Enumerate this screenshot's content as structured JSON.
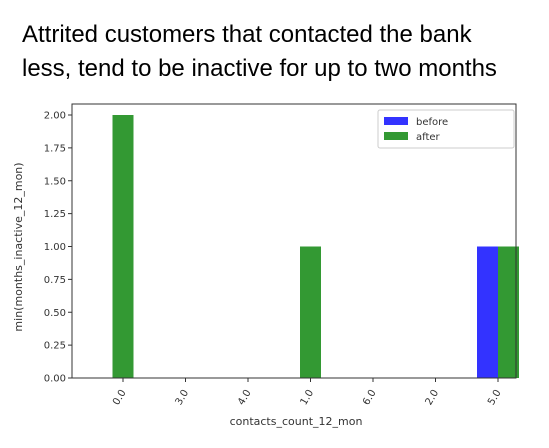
{
  "slide": {
    "title_line1": "Attrited customers that contacted the bank",
    "title_line2": "less, tend to be inactive for up to two months"
  },
  "chart_data": {
    "type": "bar",
    "xlabel": "contacts_count_12_mon",
    "ylabel": "min(months_inactive_12_mon)",
    "categories": [
      "0.0",
      "3.0",
      "4.0",
      "1.0",
      "6.0",
      "2.0",
      "5.0"
    ],
    "series": [
      {
        "name": "before",
        "color": "#3333ff",
        "values": [
          null,
          null,
          null,
          null,
          null,
          null,
          1.0
        ]
      },
      {
        "name": "after",
        "color": "#339933",
        "values": [
          2.0,
          null,
          null,
          1.0,
          null,
          null,
          1.0
        ]
      }
    ],
    "yticks": [
      "0.00",
      "0.25",
      "0.50",
      "0.75",
      "1.00",
      "1.25",
      "1.50",
      "1.75",
      "2.00"
    ],
    "ylim": [
      0,
      2.0
    ],
    "grid": false,
    "legend_position": "upper-right"
  }
}
